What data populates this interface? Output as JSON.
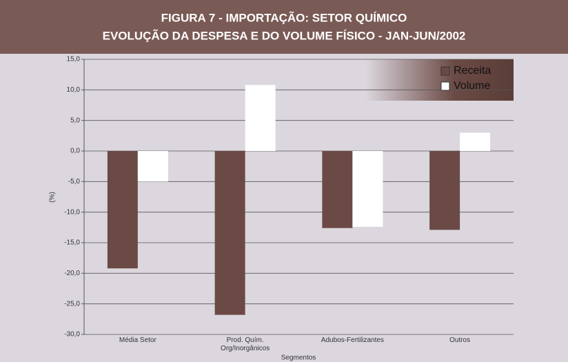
{
  "chart_data": {
    "type": "bar",
    "title": "FIGURA 7 - IMPORTAÇÃO: SETOR QUÍMICO",
    "subtitle": "EVOLUÇÃO DA DESPESA E DO VOLUME FÍSICO - JAN-JUN/2002",
    "x_label": "Segmentos",
    "y_label": "(%)",
    "categories": [
      "Média Setor",
      "Prod. Quím. Org/Inorgânicos",
      "Adubos-Fertilizantes",
      "Outros"
    ],
    "series": [
      {
        "name": "Receita",
        "color": "#6b4a45",
        "values": [
          -19.2,
          -26.8,
          -12.6,
          -12.9
        ]
      },
      {
        "name": "Volume",
        "color": "#ffffff",
        "values": [
          -5.0,
          10.8,
          -12.4,
          3.0
        ]
      }
    ],
    "ylim": [
      -30,
      15
    ],
    "yticks": [
      {
        "value": -30,
        "label": "-30,0"
      },
      {
        "value": -25,
        "label": "-25,0"
      },
      {
        "value": -20,
        "label": "-20,0"
      },
      {
        "value": -15,
        "label": "-15,0"
      },
      {
        "value": -10,
        "label": "-10,0"
      },
      {
        "value": -5,
        "label": "-5,0"
      },
      {
        "value": 0,
        "label": "0,0"
      },
      {
        "value": 5,
        "label": "5,0"
      },
      {
        "value": 10,
        "label": "10,0"
      },
      {
        "value": 15,
        "label": "15,0"
      }
    ],
    "grid": true,
    "legend": "top-right"
  }
}
